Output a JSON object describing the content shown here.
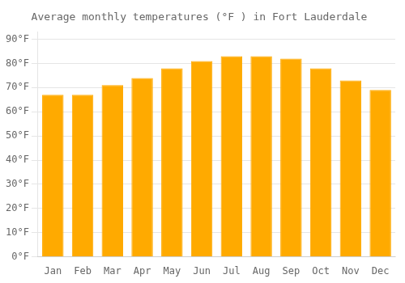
{
  "chart_data": {
    "type": "bar",
    "title": "Average monthly temperatures (°F ) in Fort Lauderdale",
    "categories": [
      "Jan",
      "Feb",
      "Mar",
      "Apr",
      "May",
      "Jun",
      "Jul",
      "Aug",
      "Sep",
      "Oct",
      "Nov",
      "Dec"
    ],
    "values": [
      67,
      67,
      71,
      74,
      78,
      81,
      83,
      83,
      82,
      78,
      73,
      69
    ],
    "color": "#FFAA00",
    "ylim": [
      0,
      93
    ],
    "yticks": [
      {
        "value": 0,
        "label": "0°F"
      },
      {
        "value": 10,
        "label": "10°F"
      },
      {
        "value": 20,
        "label": "20°F"
      },
      {
        "value": 30,
        "label": "30°F"
      },
      {
        "value": 40,
        "label": "40°F"
      },
      {
        "value": 50,
        "label": "50°F"
      },
      {
        "value": 60,
        "label": "60°F"
      },
      {
        "value": 70,
        "label": "70°F"
      },
      {
        "value": 80,
        "label": "80°F"
      },
      {
        "value": 90,
        "label": "90°F"
      }
    ],
    "grid": true
  }
}
